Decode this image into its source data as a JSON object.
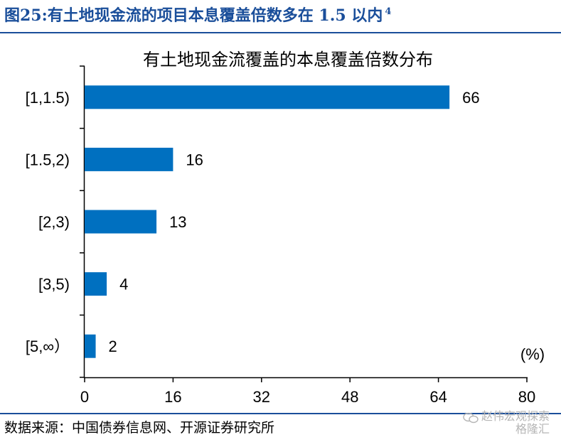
{
  "figure": {
    "label": "图25:",
    "title": "有土地现金流的项目本息覆盖倍数多在 1.5 以内",
    "footnote_marker": "4"
  },
  "chart_data": {
    "type": "bar",
    "orientation": "horizontal",
    "title": "有土地现金流覆盖的本息覆盖倍数分布",
    "unit_label": "(%)",
    "categories": [
      "[1,1.5)",
      "[1.5,2)",
      "[2,3)",
      "[3,5)",
      "[5,∞）"
    ],
    "values": [
      66,
      16,
      13,
      4,
      2
    ],
    "data_labels": [
      "66",
      "16",
      "13",
      "4",
      "2"
    ],
    "xlim": [
      0,
      80
    ],
    "xticks": [
      "0",
      "16",
      "32",
      "48",
      "64",
      "80"
    ],
    "grid": false,
    "legend": "none",
    "bar_color": "#0070c0"
  },
  "source": "数据来源：中国债券信息网、开源证券研究所",
  "watermark": {
    "line1": "赵伟宏观探索",
    "line2": "格隆汇"
  }
}
